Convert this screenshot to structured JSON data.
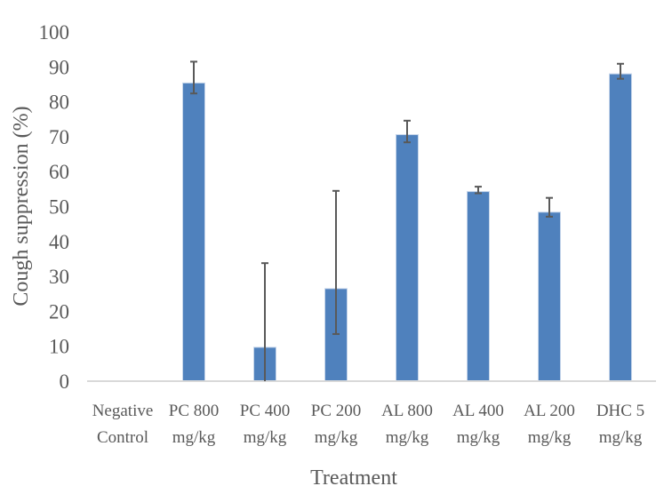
{
  "chart_data": {
    "type": "bar",
    "title": "",
    "xlabel": "Treatment",
    "ylabel": "Cough suppression (%)",
    "ylim": [
      0,
      100
    ],
    "yticks": [
      "0",
      "10",
      "20",
      "30",
      "40",
      "50",
      "60",
      "70",
      "80",
      "90",
      "100"
    ],
    "grid": false,
    "categories": [
      [
        "Negative",
        "Control"
      ],
      [
        "PC 800",
        "mg/kg"
      ],
      [
        "PC 400",
        "mg/kg"
      ],
      [
        "PC 200",
        "mg/kg"
      ],
      [
        "AL 800",
        "mg/kg"
      ],
      [
        "AL 400",
        "mg/kg"
      ],
      [
        "AL 200",
        "mg/kg"
      ],
      [
        "DHC 5",
        "mg/kg"
      ]
    ],
    "values": [
      0,
      85.4,
      9.7,
      26.5,
      70.6,
      54.3,
      48.4,
      88.0
    ],
    "error_lower": [
      0,
      82.4,
      0,
      13.5,
      68.4,
      53.8,
      47.1,
      86.6
    ],
    "error_upper": [
      0,
      91.5,
      33.8,
      54.5,
      74.6,
      55.7,
      52.5,
      90.9
    ],
    "colors": {
      "bar": "#4f81bd",
      "error": "#595959",
      "axis": "#d9d9d9"
    }
  }
}
